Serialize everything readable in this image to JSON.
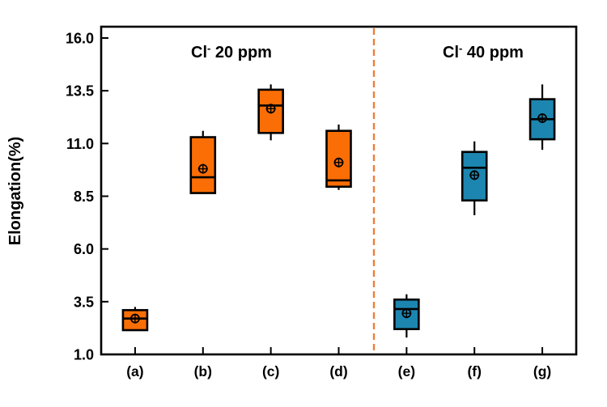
{
  "figure": {
    "background": "#ffffff",
    "frame_color": "#000000",
    "group_titles": [
      {
        "base": "Cl",
        "sup": "-",
        "rest": " 20 ppm",
        "label": "Cl- 20 ppm"
      },
      {
        "base": "Cl",
        "sup": "-",
        "rest": " 40 ppm",
        "label": "Cl- 40 ppm"
      }
    ],
    "separator": {
      "style": "dashed",
      "color": "#EE7E39",
      "between": [
        "(d)",
        "(e)"
      ]
    },
    "colors": {
      "group_20ppm": "#FA6E05",
      "group_40ppm": "#1D86B0",
      "box_edge": "#000000",
      "mean_marker": "#000000"
    }
  },
  "chart_data": {
    "type": "box",
    "title": "",
    "xlabel": "",
    "ylabel": "Elongation(%)",
    "ylim": [
      1.0,
      16.0
    ],
    "yticks": [
      1.0,
      3.5,
      6.0,
      8.5,
      11.0,
      13.5,
      16.0
    ],
    "grid": false,
    "legend_position": "none",
    "categories": [
      "(a)",
      "(b)",
      "(c)",
      "(d)",
      "(e)",
      "(f)",
      "(g)"
    ],
    "groups": [
      {
        "label": "Cl- 20 ppm",
        "color": "#FA6E05",
        "categories": [
          "(a)",
          "(b)",
          "(c)",
          "(d)"
        ]
      },
      {
        "label": "Cl- 40 ppm",
        "color": "#1D86B0",
        "categories": [
          "(e)",
          "(f)",
          "(g)"
        ]
      }
    ],
    "boxes": [
      {
        "category": "(a)",
        "group": "Cl- 20 ppm",
        "color": "#FA6E05",
        "whisker_low": 2.15,
        "q1": 2.15,
        "median": 2.7,
        "mean": 2.7,
        "q3": 3.1,
        "whisker_high": 3.25
      },
      {
        "category": "(b)",
        "group": "Cl- 20 ppm",
        "color": "#FA6E05",
        "whisker_low": 8.65,
        "q1": 8.65,
        "median": 9.4,
        "mean": 9.8,
        "q3": 11.3,
        "whisker_high": 11.6
      },
      {
        "category": "(c)",
        "group": "Cl- 20 ppm",
        "color": "#FA6E05",
        "whisker_low": 11.15,
        "q1": 11.5,
        "median": 12.8,
        "mean": 12.65,
        "q3": 13.55,
        "whisker_high": 13.8
      },
      {
        "category": "(d)",
        "group": "Cl- 20 ppm",
        "color": "#FA6E05",
        "whisker_low": 8.8,
        "q1": 8.95,
        "median": 9.25,
        "mean": 10.1,
        "q3": 11.6,
        "whisker_high": 11.9
      },
      {
        "category": "(e)",
        "group": "Cl- 40 ppm",
        "color": "#1D86B0",
        "whisker_low": 1.8,
        "q1": 2.2,
        "median": 3.15,
        "mean": 2.95,
        "q3": 3.6,
        "whisker_high": 3.85
      },
      {
        "category": "(f)",
        "group": "Cl- 40 ppm",
        "color": "#1D86B0",
        "whisker_low": 7.6,
        "q1": 8.3,
        "median": 9.85,
        "mean": 9.5,
        "q3": 10.6,
        "whisker_high": 11.1
      },
      {
        "category": "(g)",
        "group": "Cl- 40 ppm",
        "color": "#1D86B0",
        "whisker_low": 10.7,
        "q1": 11.2,
        "median": 12.15,
        "mean": 12.2,
        "q3": 13.1,
        "whisker_high": 13.8
      }
    ]
  }
}
